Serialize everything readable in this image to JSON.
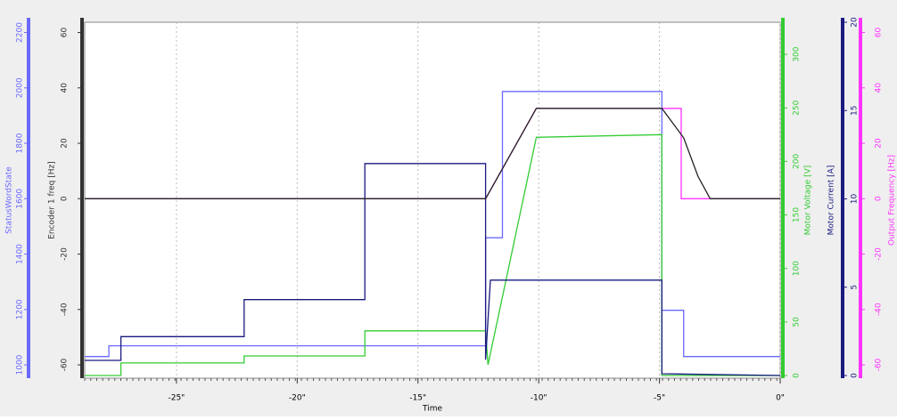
{
  "chart_data": {
    "type": "line",
    "xlabel": "Time",
    "xlim": [
      -28.8,
      0
    ],
    "xticks": [
      {
        "value": -25,
        "label": "-25\""
      },
      {
        "value": -20,
        "label": "-20\""
      },
      {
        "value": -15,
        "label": "-15\""
      },
      {
        "value": -10,
        "label": "-10\""
      },
      {
        "value": -5,
        "label": "-5\""
      },
      {
        "value": 0,
        "label": "0\""
      }
    ],
    "grid": true,
    "axes": [
      {
        "label": "StatusWordState",
        "color": "#6a6aff",
        "side": "left",
        "ylim": [
          952,
          2237
        ],
        "yticks": [
          1000,
          1200,
          1400,
          1600,
          1800,
          2000,
          2200
        ]
      },
      {
        "label": "Encoder 1 freq [Hz]",
        "color": "#333333",
        "side": "left",
        "ylim": [
          -64.8,
          63.7
        ],
        "yticks": [
          -60,
          -40,
          -20,
          0,
          20,
          40,
          60
        ]
      },
      {
        "label": "Motor Voltage [V]",
        "color": "#33cc33",
        "side": "right",
        "ylim": [
          -2.5,
          330
        ],
        "yticks": [
          0,
          50,
          100,
          150,
          200,
          250,
          300
        ]
      },
      {
        "label": "Motor Current [A]",
        "color": "#1a1a80",
        "side": "right",
        "ylim": [
          -0.15,
          20
        ],
        "yticks": [
          0,
          5,
          10,
          15,
          20
        ]
      },
      {
        "label": "Output Frequency [Hz]",
        "color": "#ff33ff",
        "side": "right",
        "ylim": [
          -64.8,
          63.7
        ],
        "yticks": [
          -60,
          -40,
          -20,
          0,
          20,
          40,
          60
        ]
      }
    ],
    "series": [
      {
        "axis": 0,
        "color": "#6a6aff",
        "x": [
          -28.8,
          -27.8,
          -27.8,
          -12.2,
          -12.2,
          -11.5,
          -11.5,
          -4.9,
          -4.9,
          -4.0,
          -4.0,
          0
        ],
        "values": [
          1030,
          1030,
          1069,
          1069,
          1459,
          1459,
          1987,
          1987,
          1197,
          1197,
          1030,
          1030
        ]
      },
      {
        "axis": 2,
        "color": "#33cc33",
        "x": [
          -28.8,
          -27.3,
          -27.3,
          -22.2,
          -22.2,
          -17.2,
          -17.2,
          -12.2,
          -12.1,
          -10.1,
          -4.9,
          -4.9,
          0
        ],
        "values": [
          0,
          0,
          11.7,
          11.7,
          18.3,
          18.3,
          41.7,
          41.7,
          10,
          222.5,
          225,
          0,
          0
        ]
      },
      {
        "axis": 3,
        "color": "#1a1a80",
        "x": [
          -28.8,
          -27.3,
          -27.3,
          -22.2,
          -22.2,
          -17.2,
          -17.2,
          -12.2,
          -12.2,
          -12.0,
          -4.9,
          -4.9,
          0
        ],
        "values": [
          0.86,
          0.86,
          2.2,
          2.2,
          4.3,
          4.3,
          12.0,
          12.0,
          0.9,
          5.4,
          5.4,
          0.1,
          0
        ]
      },
      {
        "axis": 4,
        "color": "#ff33ff",
        "x": [
          -28.8,
          -12.2,
          -10.1,
          -4.9,
          -4.1,
          -4.1,
          0
        ],
        "values": [
          0,
          0,
          32.6,
          32.6,
          32.6,
          0,
          0
        ]
      },
      {
        "axis": 1,
        "color": "#222222",
        "x": [
          -28.8,
          -12.2,
          -10.1,
          -4.9,
          -4.0,
          -3.4,
          -2.9,
          0
        ],
        "values": [
          0,
          0,
          32.6,
          32.6,
          22,
          8,
          0,
          0
        ]
      }
    ]
  }
}
